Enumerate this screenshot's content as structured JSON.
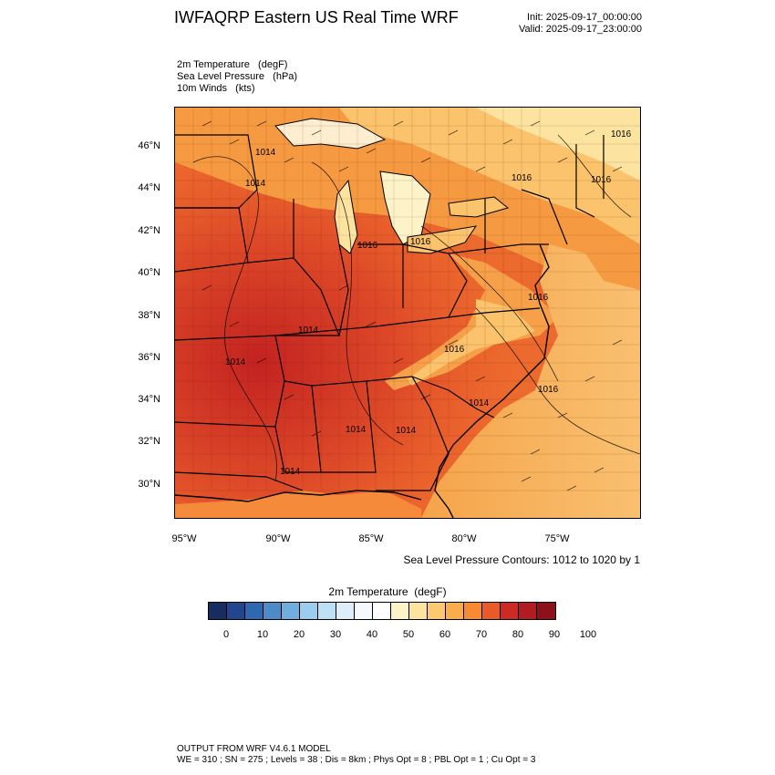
{
  "header": {
    "title": "IWFAQRP Eastern US Real Time WRF",
    "init": "Init: 2025-09-17_00:00:00",
    "valid": "Valid: 2025-09-17_23:00:00"
  },
  "fields": {
    "line1": "2m Temperature   (degF)",
    "line2": "Sea Level Pressure   (hPa)",
    "line3": "10m Winds   (kts)"
  },
  "lat_labels": [
    "46°N",
    "44°N",
    "42°N",
    "40°N",
    "38°N",
    "36°N",
    "34°N",
    "32°N",
    "30°N"
  ],
  "lon_labels": [
    "95°W",
    "90°W",
    "85°W",
    "80°W",
    "75°W"
  ],
  "isobar_labels": [
    "1016",
    "1014",
    "1016",
    "1016",
    "1016",
    "1016",
    "1016",
    "1014",
    "1016",
    "1014",
    "1014",
    "1014",
    "1014",
    "1014",
    "1014",
    "1016"
  ],
  "contour_note": "Sea Level Pressure Contours: 1012 to 1020 by 1",
  "colorbar": {
    "title": "2m Temperature  (degF)",
    "colors": [
      "#182d5f",
      "#21468e",
      "#2f67b0",
      "#4c8ac8",
      "#70aede",
      "#9bcdee",
      "#bee0f5",
      "#ddeefa",
      "#f5f9fd",
      "#ffffff",
      "#fdf3c8",
      "#fde3a0",
      "#fcc972",
      "#fbad4c",
      "#f88a34",
      "#e85a2a",
      "#cc2a22",
      "#b11c20",
      "#8c1118"
    ],
    "ticks": [
      "0",
      "10",
      "20",
      "30",
      "40",
      "50",
      "60",
      "70",
      "80",
      "90",
      "100"
    ]
  },
  "footer": {
    "line1": "OUTPUT FROM WRF V4.6.1 MODEL",
    "line2": "WE = 310 ; SN = 275 ; Levels = 38 ; Dis = 8km ; Phys Opt = 8 ; PBL Opt = 1 ; Cu Opt = 3"
  }
}
